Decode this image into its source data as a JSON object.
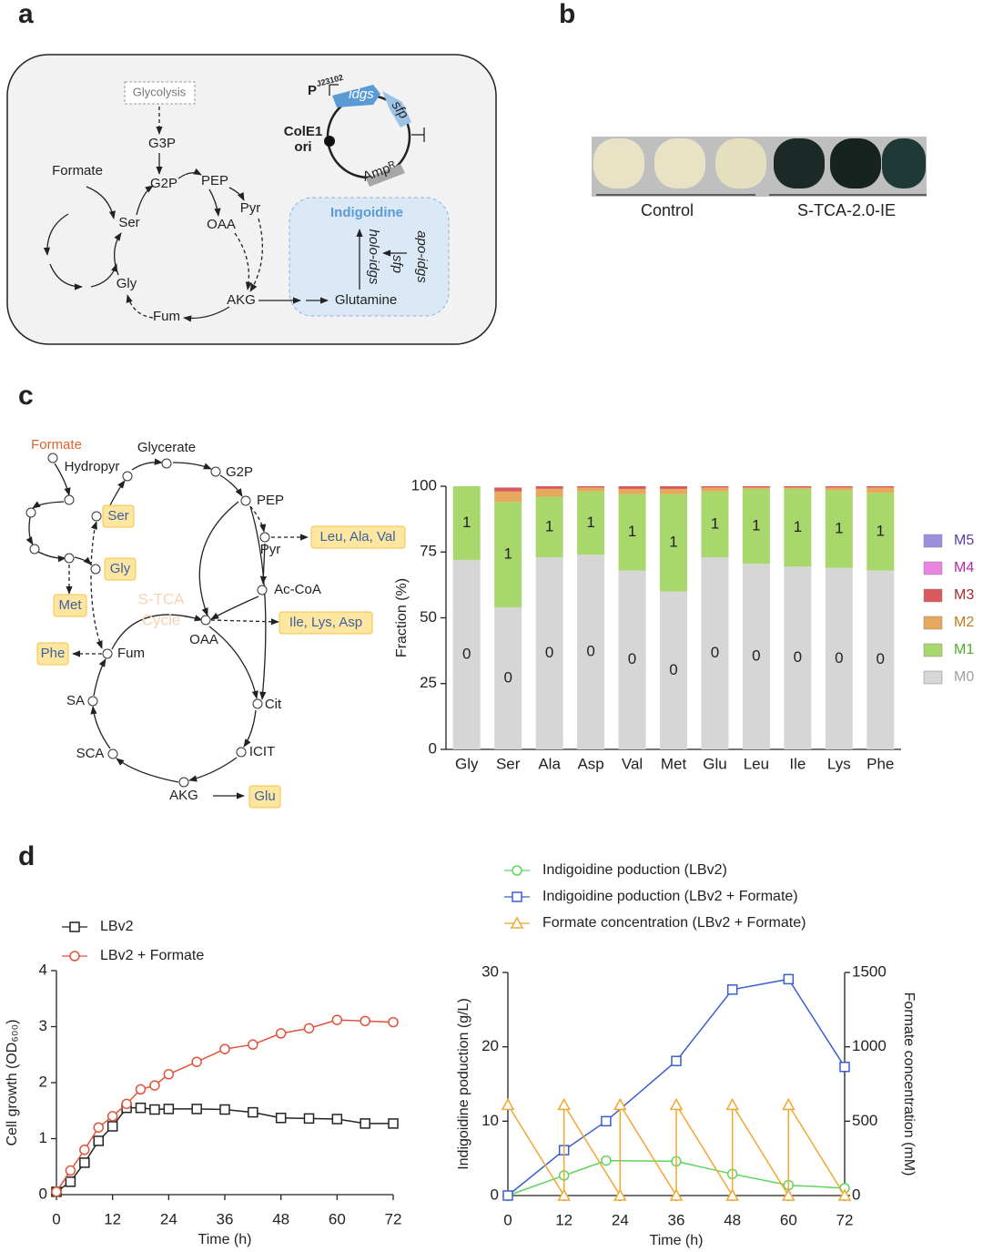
{
  "panels": [
    "a",
    "b",
    "c",
    "d"
  ],
  "panel_a": {
    "labels": [
      "Glycolysis",
      "G3P",
      "G2P",
      "PEP",
      "Pyr",
      "OAA",
      "AKG",
      "Fum",
      "Gly",
      "Ser",
      "Formate",
      "Glutamine",
      "Indigoidine",
      "holo-idgs",
      "sfp",
      "apo-idgs",
      "P",
      "J23102",
      "idgs",
      "sfp",
      "ColE1",
      "ori",
      "Ampᴿ"
    ]
  },
  "panel_b": {
    "labels": [
      "Control",
      "S-TCA-2.0-IE"
    ]
  },
  "panel_c": {
    "labels": [
      "Formate",
      "Hydropyr",
      "Glycerate",
      "G2P",
      "PEP",
      "Pyr",
      "Ac-CoA",
      "OAA",
      "Cit",
      "ICIT",
      "AKG",
      "SCA",
      "SA",
      "Fum",
      "S-TCA",
      "Cycle"
    ],
    "boxes": [
      "Ser",
      "Gly",
      "Met",
      "Phe",
      "Leu, Ala, Val",
      "Ile, Lys, Asp",
      "Glu"
    ]
  },
  "chart_data": [
    {
      "type": "bar",
      "stacked": true,
      "ylabel": "Fraction (%)",
      "legend": "right",
      "categories": [
        "Gly",
        "Ser",
        "Ala",
        "Asp",
        "Val",
        "Met",
        "Glu",
        "Leu",
        "Ile",
        "Lys",
        "Phe"
      ],
      "ylim": [
        0,
        100
      ],
      "yticks": [
        0,
        25,
        50,
        75,
        100
      ],
      "series": [
        {
          "name": "M0",
          "color": "#d6d6d6",
          "text_color": "#a0a0a0",
          "bar_label": "0",
          "values": [
            72,
            54,
            73,
            74,
            68,
            60,
            73,
            70.5,
            69.5,
            69,
            68
          ]
        },
        {
          "name": "M1",
          "color": "#a8d86b",
          "text_color": "#4caf2a",
          "bar_label": "1",
          "values": [
            28,
            40,
            23,
            24,
            29,
            37,
            25,
            28.5,
            29.5,
            29.5,
            29.5
          ]
        },
        {
          "name": "M2",
          "color": "#e6a85c",
          "text_color": "#c27a1e",
          "values": [
            0,
            4,
            3,
            1.5,
            2,
            2,
            1.5,
            0.5,
            0.5,
            1,
            2
          ]
        },
        {
          "name": "M3",
          "color": "#d9595f",
          "text_color": "#a82c2c",
          "values": [
            0,
            1.5,
            1,
            0.5,
            1,
            1,
            0.5,
            0.5,
            0.5,
            0.5,
            0.5
          ]
        },
        {
          "name": "M4",
          "color": "#e985e0",
          "text_color": "#b52aa8",
          "values": [
            0,
            0,
            0,
            0,
            0,
            0,
            0,
            0,
            0,
            0,
            0
          ]
        },
        {
          "name": "M5",
          "color": "#9d8fdc",
          "text_color": "#5a3fa8",
          "values": [
            0,
            0,
            0,
            0,
            0,
            0,
            0,
            0,
            0,
            0,
            0
          ]
        }
      ]
    },
    {
      "type": "line",
      "xlabel": "Time (h)",
      "ylabel": "Cell growth (OD₆₀₀)",
      "legend": "top-left",
      "x": [
        0,
        3,
        6,
        9,
        12,
        15,
        18,
        21,
        24,
        30,
        36,
        42,
        48,
        54,
        60,
        66,
        72
      ],
      "xlim": [
        0,
        72
      ],
      "xticks": [
        0,
        12,
        24,
        36,
        48,
        60,
        72
      ],
      "ylim": [
        0,
        4
      ],
      "yticks": [
        0,
        1,
        2,
        3,
        4
      ],
      "series": [
        {
          "name": "LBv2",
          "color": "#222222",
          "marker": "square",
          "values": [
            0.05,
            0.23,
            0.57,
            0.96,
            1.22,
            1.55,
            1.55,
            1.52,
            1.53,
            1.53,
            1.52,
            1.47,
            1.37,
            1.36,
            1.35,
            1.27,
            1.27
          ]
        },
        {
          "name": "LBv2 + Formate",
          "color": "#e0533b",
          "marker": "circle",
          "values": [
            0.05,
            0.43,
            0.8,
            1.2,
            1.4,
            1.62,
            1.88,
            1.95,
            2.15,
            2.37,
            2.6,
            2.68,
            2.88,
            2.97,
            3.12,
            3.1,
            3.08
          ]
        }
      ]
    },
    {
      "type": "line",
      "xlabel": "Time (h)",
      "ylabel": "Indigoidine poduction (g/L)",
      "y2label": "Formate concentration (mM)",
      "legend": "top",
      "xlim": [
        0,
        72
      ],
      "xticks": [
        0,
        12,
        24,
        36,
        48,
        60,
        72
      ],
      "ylim": [
        0,
        30
      ],
      "yticks": [
        0,
        10,
        20,
        30
      ],
      "y2lim": [
        0,
        1500
      ],
      "y2ticks": [
        0,
        500,
        1000,
        1500
      ],
      "series": [
        {
          "name": "Indigoidine poduction (LBv2)",
          "color": "#5cd65c",
          "marker": "circle",
          "x": [
            0,
            12,
            21,
            36,
            48,
            60,
            72
          ],
          "values": [
            0,
            2.7,
            4.7,
            4.6,
            2.9,
            1.4,
            1.0
          ]
        },
        {
          "name": "Indigoidine poduction (LBv2 + Formate)",
          "color": "#3a5fcd",
          "marker": "square",
          "x": [
            0,
            12,
            21,
            36,
            48,
            60,
            72
          ],
          "values": [
            0,
            6.1,
            10,
            18.1,
            27.7,
            29.1,
            17.3
          ]
        },
        {
          "name": "Formate concentration (LBv2 + Formate)",
          "color": "#f0a830",
          "marker": "triangle",
          "axis": "y2",
          "x": [
            0,
            12,
            12,
            24,
            24,
            36,
            36,
            48,
            48,
            60,
            60,
            72
          ],
          "values": [
            610,
            0,
            610,
            0,
            610,
            0,
            610,
            0,
            610,
            0,
            610,
            0
          ]
        }
      ]
    }
  ]
}
